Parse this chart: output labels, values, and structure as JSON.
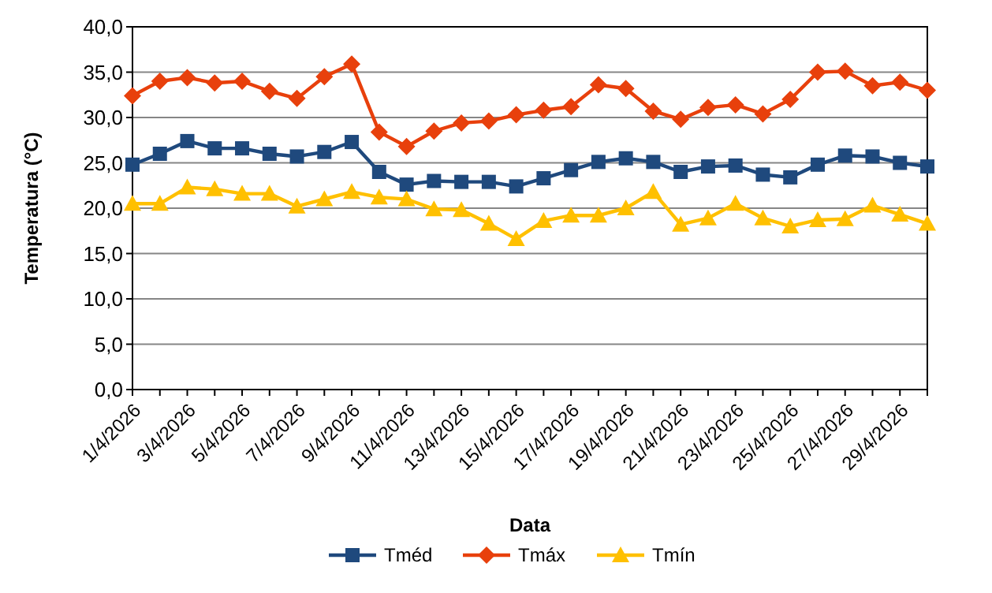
{
  "chart_data": {
    "type": "line",
    "xlabel": "Data",
    "ylabel": "Temperatura (°C)",
    "categories": [
      "1/4/2026",
      null,
      "3/4/2026",
      null,
      "5/4/2026",
      null,
      "7/4/2026",
      null,
      "9/4/2026",
      null,
      "11/4/2026",
      null,
      "13/4/2026",
      null,
      "15/4/2026",
      null,
      "17/4/2026",
      null,
      "19/4/2026",
      null,
      "21/4/2026",
      null,
      "23/4/2026",
      null,
      "25/4/2026",
      null,
      "27/4/2026",
      null,
      "29/4/2026",
      null
    ],
    "series": [
      {
        "name": "Tméd",
        "color": "#1f497d",
        "marker": "square",
        "values": [
          24.8,
          26.0,
          27.4,
          26.6,
          26.6,
          26.0,
          25.7,
          26.2,
          27.3,
          24.0,
          22.6,
          23.0,
          22.9,
          22.9,
          22.4,
          23.3,
          24.2,
          25.1,
          25.5,
          25.1,
          24.0,
          24.6,
          24.7,
          23.7,
          23.4,
          24.8,
          25.8,
          25.7,
          25.0,
          24.6
        ]
      },
      {
        "name": "Tmáx",
        "color": "#e8400c",
        "marker": "diamond",
        "values": [
          32.4,
          34.0,
          34.4,
          33.8,
          34.0,
          32.9,
          32.1,
          34.5,
          35.9,
          28.4,
          26.8,
          28.5,
          29.4,
          29.6,
          30.3,
          30.8,
          31.2,
          33.6,
          33.2,
          30.7,
          29.8,
          31.1,
          31.4,
          30.4,
          32.0,
          35.0,
          35.1,
          33.5,
          33.9,
          33.0
        ]
      },
      {
        "name": "Tmín",
        "color": "#ffc000",
        "marker": "triangle",
        "values": [
          20.5,
          20.5,
          22.3,
          22.1,
          21.6,
          21.6,
          20.2,
          21.0,
          21.8,
          21.2,
          21.0,
          19.9,
          19.8,
          18.3,
          16.6,
          18.6,
          19.2,
          19.2,
          20.0,
          21.8,
          18.2,
          18.9,
          20.5,
          18.9,
          18.0,
          18.7,
          18.8,
          20.3,
          19.3,
          18.3
        ]
      }
    ],
    "ylim": [
      0,
      40
    ],
    "yticks": [
      {
        "value": 0,
        "label": "0,0"
      },
      {
        "value": 5,
        "label": "5,0"
      },
      {
        "value": 10,
        "label": "10,0"
      },
      {
        "value": 15,
        "label": "15,0"
      },
      {
        "value": 20,
        "label": "20,0"
      },
      {
        "value": 25,
        "label": "25,0"
      },
      {
        "value": 30,
        "label": "30,0"
      },
      {
        "value": 35,
        "label": "35,0"
      },
      {
        "value": 40,
        "label": "40,0"
      }
    ],
    "grid": "y",
    "legend": "bottom",
    "line_style": "solid"
  }
}
